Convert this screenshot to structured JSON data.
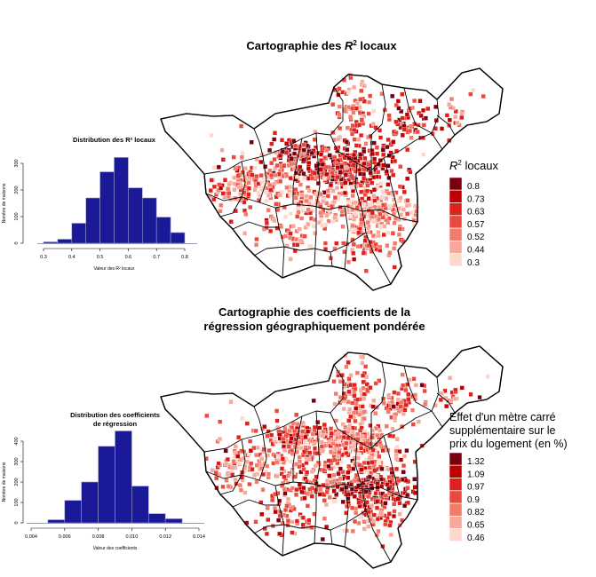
{
  "top": {
    "title_main": "Cartographie des ",
    "title_r": "R",
    "title_sup": "2",
    "title_end": " locaux",
    "legend_r": "R",
    "legend_sup": "2",
    "legend_end": " locaux"
  },
  "bottom": {
    "title_line1": "Cartographie des coefficients de la",
    "title_line2": "régression géographiquement pondérée",
    "legend_line1": "Effet d'un mètre carré",
    "legend_line2": "supplémentaire sur le",
    "legend_line3": "prix du logement (en %)"
  },
  "colors": {
    "bar_fill": "#1a1a99",
    "bar_stroke": "#9999cc",
    "map_stroke": "#000000",
    "scale": [
      "#fcd9cc",
      "#f6a99a",
      "#f07c6c",
      "#e84a3e",
      "#e0201c",
      "#c00000",
      "#7a0010"
    ]
  },
  "chart_data": [
    {
      "type": "bar",
      "title": "Distribution des R² locaux",
      "xlabel": "Valeur des R² locaux",
      "ylabel": "Nombre de maisons",
      "bin_edges": [
        0.3,
        0.35,
        0.4,
        0.45,
        0.5,
        0.55,
        0.6,
        0.65,
        0.7,
        0.75,
        0.8
      ],
      "values": [
        5,
        15,
        75,
        170,
        268,
        322,
        208,
        170,
        98,
        40
      ],
      "xlim": [
        0.3,
        0.8
      ],
      "ylim": [
        0,
        300
      ],
      "xticks": [
        "0.3",
        "0.4",
        "0.5",
        "0.6",
        "0.7",
        "0.8"
      ],
      "yticks": [
        "0",
        "100",
        "200",
        "300"
      ]
    },
    {
      "type": "bar",
      "title_line1": "Distribution des coefficients",
      "title_line2": "de régression",
      "xlabel": "Valeur des coefficients",
      "ylabel": "Nombre de maisons",
      "bin_edges": [
        0.005,
        0.006,
        0.007,
        0.008,
        0.009,
        0.01,
        0.011,
        0.012,
        0.013
      ],
      "values": [
        15,
        110,
        200,
        375,
        450,
        180,
        45,
        20
      ],
      "xlim": [
        0.004,
        0.014
      ],
      "ylim": [
        0,
        400
      ],
      "xticks": [
        "0.004",
        "0.006",
        "0.008",
        "0.010",
        "0.012",
        "0.014"
      ],
      "yticks": [
        "0",
        "100",
        "200",
        "300",
        "400"
      ]
    },
    {
      "type": "map",
      "title": "Cartographie des R² locaux",
      "legend_title": "R² locaux",
      "legend_labels": [
        "0.8",
        "0.73",
        "0.63",
        "0.57",
        "0.52",
        "0.44",
        "0.3"
      ]
    },
    {
      "type": "map",
      "title": "Cartographie des coefficients de la régression géographiquement pondérée",
      "legend_title": "Effet d'un mètre carré supplémentaire sur le prix du logement (en %)",
      "legend_labels": [
        "1.32",
        "1.09",
        "0.97",
        "0.9",
        "0.82",
        "0.65",
        "0.46"
      ]
    }
  ]
}
